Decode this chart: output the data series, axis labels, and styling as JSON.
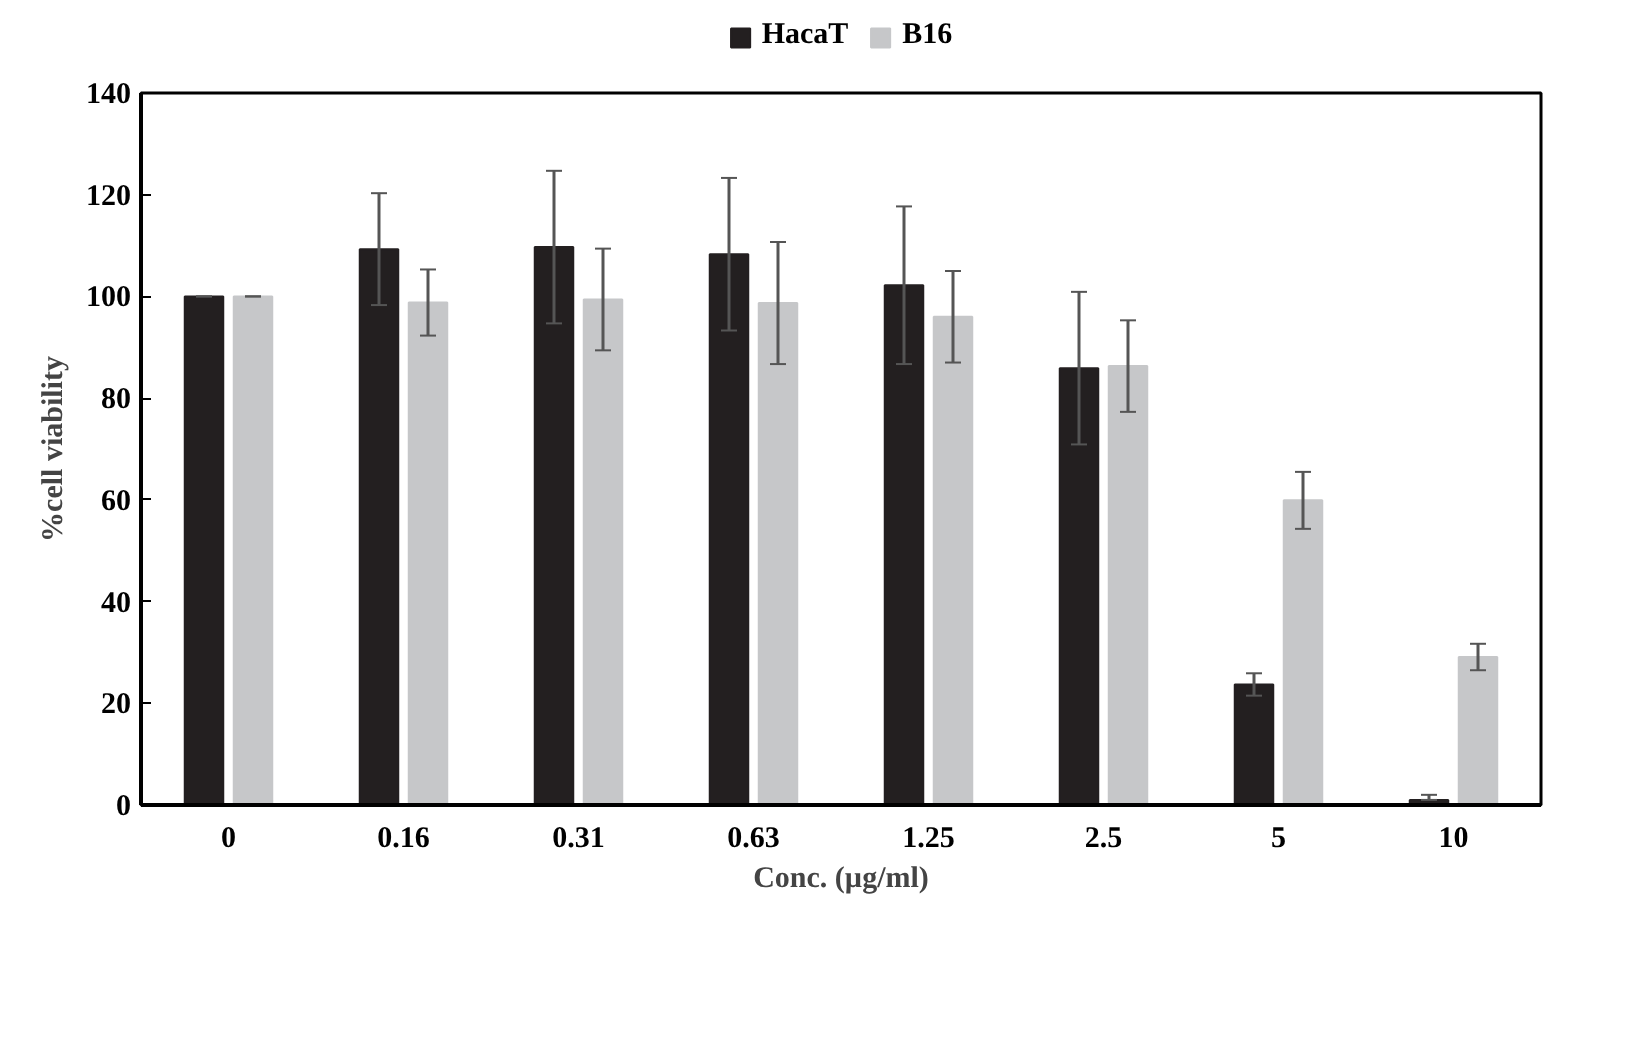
{
  "chart_data": {
    "type": "bar",
    "xlabel": "Conc. (µg/ml)",
    "ylabel": "%cell viability",
    "categories": [
      "0",
      "0.16",
      "0.31",
      "0.63",
      "1.25",
      "2.5",
      "5",
      "10"
    ],
    "series": [
      {
        "name": "HacaT",
        "color": "#231f20",
        "values": [
          100,
          109.3,
          109.7,
          108.3,
          102.2,
          85.9,
          23.7,
          1
        ],
        "errors": [
          0,
          11,
          15,
          15,
          15.5,
          15,
          2.2,
          [
            1,
            2
          ]
        ]
      },
      {
        "name": "B16",
        "color": "#c6c7c9",
        "values": [
          100,
          98.8,
          99.4,
          98.7,
          96,
          86.3,
          59.9,
          29.1
        ],
        "errors": [
          0,
          6.5,
          10,
          12,
          9,
          9,
          5.6,
          2.6
        ]
      }
    ],
    "ylim": [
      0,
      140
    ],
    "yticks": [
      0,
      20,
      40,
      60,
      80,
      100,
      120,
      140
    ],
    "grid": false,
    "legend": "top"
  }
}
